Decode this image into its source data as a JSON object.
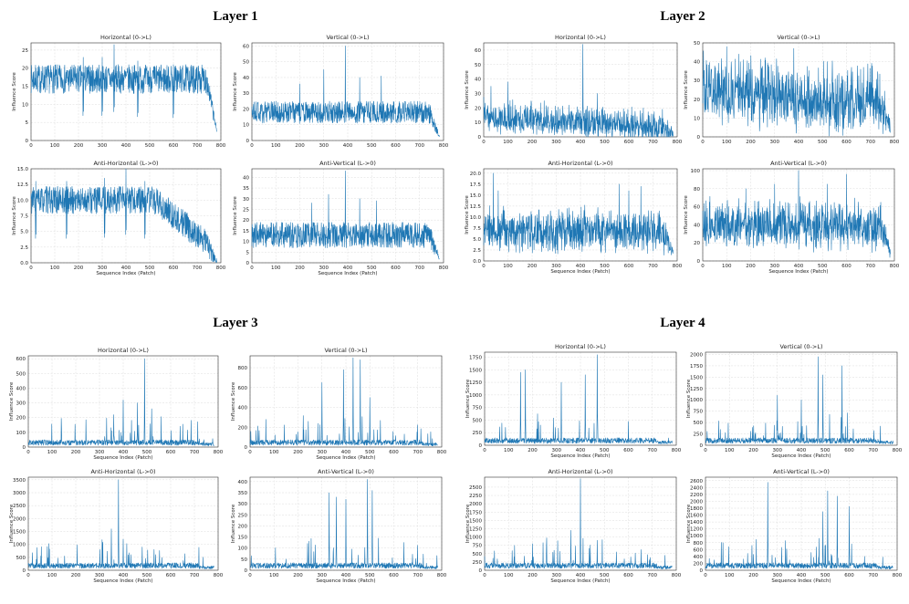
{
  "layers": [
    {
      "title": "Layer 1",
      "panels": [
        {
          "title": "Horizontal (0->L)",
          "xlabel": "",
          "ylabel": "Influence Score",
          "ylim": [
            0,
            27
          ],
          "yticks": [
            "0",
            "5",
            "10",
            "15",
            "20",
            "25"
          ],
          "ytick_values": [
            0,
            5,
            10,
            15,
            20,
            25
          ],
          "peaks": [
            [
              350,
              26.5
            ],
            [
              220,
              23
            ],
            [
              300,
              23
            ],
            [
              450,
              22
            ],
            [
              600,
              21
            ]
          ]
        },
        {
          "title": "Vertical (0->L)",
          "xlabel": "",
          "ylabel": "Influence Score",
          "ylim": [
            0,
            62
          ],
          "yticks": [
            "0",
            "10",
            "20",
            "30",
            "40",
            "50",
            "60"
          ],
          "ytick_values": [
            0,
            10,
            20,
            30,
            40,
            50,
            60
          ],
          "peaks": [
            [
              390,
              60
            ],
            [
              300,
              45
            ],
            [
              540,
              41
            ],
            [
              450,
              40
            ],
            [
              200,
              36
            ]
          ]
        },
        {
          "title": "Anti-Horizontal (L->0)",
          "xlabel": "Sequence Index (Patch)",
          "ylabel": "Influence Score",
          "ylim": [
            0,
            15
          ],
          "yticks": [
            "0.0",
            "2.5",
            "5.0",
            "7.5",
            "10.0",
            "12.5",
            "15.0"
          ],
          "ytick_values": [
            0,
            2.5,
            5,
            7.5,
            10,
            12.5,
            15
          ],
          "peaks": [
            [
              400,
              15
            ],
            [
              310,
              13.5
            ],
            [
              480,
              13
            ],
            [
              150,
              13
            ],
            [
              20,
              13
            ]
          ]
        },
        {
          "title": "Anti-Vertical (L->0)",
          "xlabel": "Sequence Index (Patch)",
          "ylabel": "Influence Score",
          "ylim": [
            0,
            44
          ],
          "yticks": [
            "0",
            "5",
            "10",
            "15",
            "20",
            "25",
            "30",
            "35",
            "40"
          ],
          "ytick_values": [
            0,
            5,
            10,
            15,
            20,
            25,
            30,
            35,
            40
          ],
          "peaks": [
            [
              390,
              43
            ],
            [
              320,
              32
            ],
            [
              450,
              30
            ],
            [
              520,
              29
            ],
            [
              250,
              28
            ]
          ]
        }
      ]
    },
    {
      "title": "Layer 2",
      "panels": [
        {
          "title": "Horizontal (0->L)",
          "xlabel": "",
          "ylabel": "Influence Score",
          "ylim": [
            0,
            65
          ],
          "yticks": [
            "0",
            "10",
            "20",
            "30",
            "40",
            "50",
            "60"
          ],
          "ytick_values": [
            0,
            10,
            20,
            30,
            40,
            50,
            60
          ],
          "peaks": [
            [
              410,
              64
            ],
            [
              100,
              38
            ],
            [
              30,
              35
            ],
            [
              470,
              30
            ],
            [
              250,
              25
            ]
          ]
        },
        {
          "title": "Vertical (0->L)",
          "xlabel": "",
          "ylabel": "Influence Score",
          "ylim": [
            0,
            50
          ],
          "yticks": [
            "0",
            "10",
            "20",
            "30",
            "40",
            "50"
          ],
          "ytick_values": [
            0,
            10,
            20,
            30,
            40,
            50
          ],
          "peaks": [
            [
              100,
              48
            ],
            [
              380,
              47
            ],
            [
              150,
              44
            ],
            [
              260,
              42
            ],
            [
              520,
              40
            ]
          ]
        },
        {
          "title": "Anti-Horizontal (L->0)",
          "xlabel": "Sequence Index (Patch)",
          "ylabel": "Influence Score",
          "ylim": [
            0,
            21
          ],
          "yticks": [
            "0.0",
            "2.5",
            "5.0",
            "7.5",
            "10.0",
            "12.5",
            "15.0",
            "17.5",
            "20.0"
          ],
          "ytick_values": [
            0,
            2.5,
            5,
            7.5,
            10,
            12.5,
            15,
            17.5,
            20
          ],
          "peaks": [
            [
              40,
              20
            ],
            [
              60,
              16
            ],
            [
              560,
              17.5
            ],
            [
              650,
              17
            ],
            [
              600,
              16
            ]
          ]
        },
        {
          "title": "Anti-Vertical (L->0)",
          "xlabel": "Sequence Index (Patch)",
          "ylabel": "Influence Score",
          "ylim": [
            0,
            102
          ],
          "yticks": [
            "0",
            "20",
            "40",
            "60",
            "80",
            "100"
          ],
          "ytick_values": [
            0,
            20,
            40,
            60,
            80,
            100
          ],
          "peaks": [
            [
              400,
              100
            ],
            [
              600,
              96
            ],
            [
              300,
              85
            ],
            [
              520,
              85
            ],
            [
              180,
              80
            ]
          ]
        }
      ]
    },
    {
      "title": "Layer 3",
      "panels": [
        {
          "title": "Horizontal (0->L)",
          "xlabel": "Sequence Index (Patch)",
          "ylabel": "Influence Score",
          "ylim": [
            0,
            620
          ],
          "yticks": [
            "0",
            "100",
            "200",
            "300",
            "400",
            "500",
            "600"
          ],
          "ytick_values": [
            0,
            100,
            200,
            300,
            400,
            500,
            600
          ],
          "peaks": [
            [
              490,
              600
            ],
            [
              400,
              320
            ],
            [
              460,
              300
            ],
            [
              520,
              260
            ],
            [
              360,
              220
            ]
          ]
        },
        {
          "title": "Vertical (0->L)",
          "xlabel": "Sequence Index (Patch)",
          "ylabel": "Influence Score",
          "ylim": [
            0,
            920
          ],
          "yticks": [
            "0",
            "200",
            "400",
            "600",
            "800"
          ],
          "ytick_values": [
            0,
            200,
            400,
            600,
            800
          ],
          "peaks": [
            [
              430,
              900
            ],
            [
              460,
              880
            ],
            [
              390,
              780
            ],
            [
              300,
              650
            ],
            [
              500,
              500
            ]
          ]
        },
        {
          "title": "Anti-Horizontal (L->0)",
          "xlabel": "Sequence Index (Patch)",
          "ylabel": "Influence Score",
          "ylim": [
            0,
            3600
          ],
          "yticks": [
            "0",
            "500",
            "1000",
            "1500",
            "2000",
            "2500",
            "3000",
            "3500"
          ],
          "ytick_values": [
            0,
            500,
            1000,
            1500,
            2000,
            2500,
            3000,
            3500
          ],
          "peaks": [
            [
              380,
              3500
            ],
            [
              350,
              1600
            ],
            [
              400,
              1200
            ],
            [
              480,
              900
            ],
            [
              530,
              800
            ]
          ]
        },
        {
          "title": "Anti-Vertical (L->0)",
          "xlabel": "Sequence Index (Patch)",
          "ylabel": "Influence Score",
          "ylim": [
            0,
            420
          ],
          "yticks": [
            "0",
            "50",
            "100",
            "150",
            "200",
            "250",
            "300",
            "350",
            "400"
          ],
          "ytick_values": [
            0,
            50,
            100,
            150,
            200,
            250,
            300,
            350,
            400
          ],
          "peaks": [
            [
              490,
              410
            ],
            [
              510,
              360
            ],
            [
              330,
              350
            ],
            [
              360,
              330
            ],
            [
              400,
              320
            ]
          ]
        }
      ]
    },
    {
      "title": "Layer 4",
      "panels": [
        {
          "title": "Horizontal (0->L)",
          "xlabel": "Sequence Index (Patch)",
          "ylabel": "Influence Score",
          "ylim": [
            0,
            1850
          ],
          "yticks": [
            "0",
            "250",
            "500",
            "750",
            "1000",
            "1250",
            "1500",
            "1750"
          ],
          "ytick_values": [
            0,
            250,
            500,
            750,
            1000,
            1250,
            1500,
            1750
          ],
          "peaks": [
            [
              470,
              1800
            ],
            [
              170,
              1500
            ],
            [
              150,
              1450
            ],
            [
              420,
              1400
            ],
            [
              320,
              1250
            ]
          ]
        },
        {
          "title": "Vertical (0->L)",
          "xlabel": "Sequence Index (Patch)",
          "ylabel": "Influence Score",
          "ylim": [
            0,
            2050
          ],
          "yticks": [
            "0",
            "250",
            "500",
            "750",
            "1000",
            "1250",
            "1500",
            "1750",
            "2000"
          ],
          "ytick_values": [
            0,
            250,
            500,
            750,
            1000,
            1250,
            1500,
            1750,
            2000
          ],
          "peaks": [
            [
              470,
              1950
            ],
            [
              570,
              1750
            ],
            [
              490,
              1550
            ],
            [
              300,
              1100
            ],
            [
              400,
              1000
            ]
          ]
        },
        {
          "title": "Anti-Horizontal (L->0)",
          "xlabel": "Sequence Index (Patch)",
          "ylabel": "Influence Score",
          "ylim": [
            0,
            2800
          ],
          "yticks": [
            "0",
            "250",
            "500",
            "750",
            "1000",
            "1250",
            "1500",
            "1750",
            "2000",
            "2250",
            "2500"
          ],
          "ytick_values": [
            0,
            250,
            500,
            750,
            1000,
            1250,
            1500,
            1750,
            2000,
            2250,
            2500
          ],
          "peaks": [
            [
              400,
              2750
            ],
            [
              360,
              1200
            ],
            [
              470,
              900
            ],
            [
              290,
              600
            ],
            [
              550,
              550
            ]
          ]
        },
        {
          "title": "Anti-Vertical (L->0)",
          "xlabel": "Sequence Index (Patch)",
          "ylabel": "Influence Score",
          "ylim": [
            0,
            2700
          ],
          "yticks": [
            "0",
            "200",
            "400",
            "600",
            "800",
            "1000",
            "1200",
            "1400",
            "1600",
            "1800",
            "2000",
            "2200",
            "2400",
            "2600"
          ],
          "ytick_values": [
            0,
            200,
            400,
            600,
            800,
            1000,
            1200,
            1400,
            1600,
            1800,
            2000,
            2200,
            2400,
            2600
          ],
          "peaks": [
            [
              260,
              2550
            ],
            [
              510,
              2300
            ],
            [
              550,
              2150
            ],
            [
              600,
              1850
            ],
            [
              490,
              1700
            ]
          ]
        }
      ]
    }
  ],
  "xticks": [
    "0",
    "100",
    "200",
    "300",
    "400",
    "500",
    "600",
    "700",
    "800"
  ],
  "xtick_values": [
    0,
    100,
    200,
    300,
    400,
    500,
    600,
    700,
    800
  ],
  "xlim": [
    0,
    800
  ],
  "series_color": "#1f77b4",
  "chart_data": {
    "type": "line",
    "note": "4 layers x 4 influence-score line plots over sequence index (patch), values approx 0-784",
    "x_range": [
      0,
      784
    ],
    "series_per_panel": "influence score; peak values listed under layers[].panels[].peaks as [x, y]"
  }
}
